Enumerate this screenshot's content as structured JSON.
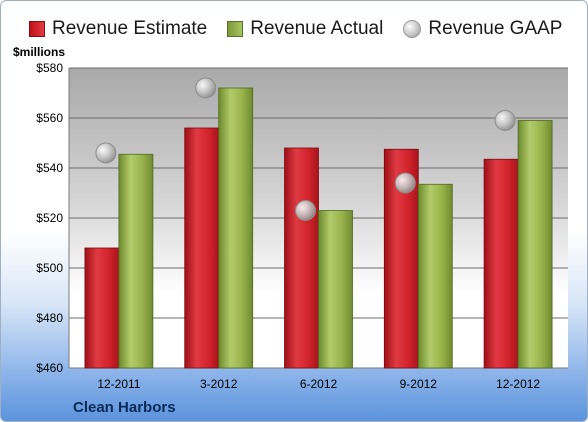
{
  "legend": {
    "estimate": "Revenue Estimate",
    "actual": "Revenue Actual",
    "gaap": "Revenue GAAP"
  },
  "units_label": "$millions",
  "company": "Clean Harbors",
  "colors": {
    "estimate": "#d2232c",
    "actual": "#97b24a",
    "gaap": "#bdbdbd"
  },
  "chart_data": {
    "type": "bar",
    "categories": [
      "12-2011",
      "3-2012",
      "6-2012",
      "9-2012",
      "12-2012"
    ],
    "series": [
      {
        "name": "Revenue Estimate",
        "kind": "bar",
        "values": [
          508,
          556,
          548,
          547.5,
          543.5
        ]
      },
      {
        "name": "Revenue Actual",
        "kind": "bar",
        "values": [
          545.5,
          572,
          523,
          533.5,
          559
        ]
      },
      {
        "name": "Revenue GAAP",
        "kind": "scatter",
        "values": [
          546,
          572,
          523,
          534,
          559
        ]
      }
    ],
    "ylim": [
      460,
      580
    ],
    "yticks": [
      460,
      480,
      500,
      520,
      540,
      560,
      580
    ],
    "ytick_labels": [
      "$460",
      "$480",
      "$500",
      "$520",
      "$540",
      "$560",
      "$580"
    ],
    "grid": true,
    "legend_position": "top"
  }
}
